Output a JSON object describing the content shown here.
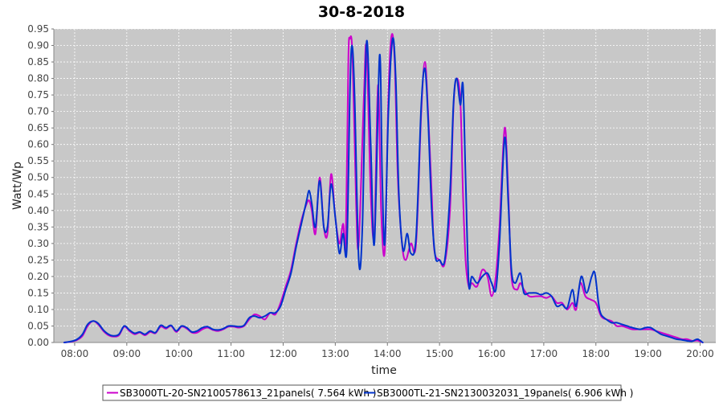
{
  "chart_data": {
    "type": "line",
    "title": "30-8-2018",
    "xlabel": "time",
    "ylabel": "Watt/Wp",
    "x_unit": "hours",
    "xlim": [
      7.6,
      20.3
    ],
    "ylim": [
      0,
      0.95
    ],
    "y_ticks": [
      0,
      0.05,
      0.1,
      0.15,
      0.2,
      0.25,
      0.3,
      0.35,
      0.4,
      0.45,
      0.5,
      0.55,
      0.6,
      0.65,
      0.7,
      0.75,
      0.8,
      0.85,
      0.9,
      0.95
    ],
    "y_tick_labels": [
      "0.00",
      "0.05",
      "0.10",
      "0.15",
      "0.20",
      "0.25",
      "0.30",
      "0.35",
      "0.40",
      "0.45",
      "0.50",
      "0.55",
      "0.60",
      "0.65",
      "0.70",
      "0.75",
      "0.80",
      "0.85",
      "0.90",
      "0.95"
    ],
    "x_ticks": [
      8,
      9,
      10,
      11,
      12,
      13,
      14,
      15,
      16,
      17,
      18,
      19,
      20
    ],
    "x_tick_labels": [
      "08:00",
      "09:00",
      "10:00",
      "11:00",
      "12:00",
      "13:00",
      "14:00",
      "15:00",
      "16:00",
      "17:00",
      "18:00",
      "19:00",
      "20:00"
    ],
    "grid": true,
    "legend_position": "bottom",
    "series": [
      {
        "name": "SB3000TL-20-SN2100578613_21panels( 7.564 kWh )",
        "color": "#cc00cc",
        "points": [
          [
            7.8,
            0.0
          ],
          [
            7.95,
            0.003
          ],
          [
            8.05,
            0.008
          ],
          [
            8.15,
            0.02
          ],
          [
            8.25,
            0.05
          ],
          [
            8.35,
            0.065
          ],
          [
            8.45,
            0.055
          ],
          [
            8.55,
            0.035
          ],
          [
            8.65,
            0.022
          ],
          [
            8.75,
            0.018
          ],
          [
            8.85,
            0.022
          ],
          [
            8.95,
            0.048
          ],
          [
            9.05,
            0.035
          ],
          [
            9.15,
            0.025
          ],
          [
            9.25,
            0.03
          ],
          [
            9.35,
            0.022
          ],
          [
            9.45,
            0.032
          ],
          [
            9.55,
            0.028
          ],
          [
            9.65,
            0.048
          ],
          [
            9.75,
            0.042
          ],
          [
            9.85,
            0.05
          ],
          [
            9.95,
            0.032
          ],
          [
            10.05,
            0.048
          ],
          [
            10.15,
            0.042
          ],
          [
            10.25,
            0.03
          ],
          [
            10.35,
            0.03
          ],
          [
            10.45,
            0.04
          ],
          [
            10.55,
            0.045
          ],
          [
            10.65,
            0.038
          ],
          [
            10.75,
            0.035
          ],
          [
            10.85,
            0.04
          ],
          [
            10.95,
            0.048
          ],
          [
            11.05,
            0.048
          ],
          [
            11.15,
            0.045
          ],
          [
            11.25,
            0.05
          ],
          [
            11.35,
            0.07
          ],
          [
            11.45,
            0.085
          ],
          [
            11.55,
            0.08
          ],
          [
            11.65,
            0.07
          ],
          [
            11.75,
            0.09
          ],
          [
            11.85,
            0.085
          ],
          [
            11.95,
            0.12
          ],
          [
            12.05,
            0.17
          ],
          [
            12.15,
            0.22
          ],
          [
            12.25,
            0.3
          ],
          [
            12.35,
            0.37
          ],
          [
            12.45,
            0.42
          ],
          [
            12.5,
            0.43
          ],
          [
            12.55,
            0.4
          ],
          [
            12.62,
            0.33
          ],
          [
            12.7,
            0.5
          ],
          [
            12.78,
            0.35
          ],
          [
            12.85,
            0.33
          ],
          [
            12.92,
            0.51
          ],
          [
            13.0,
            0.38
          ],
          [
            13.08,
            0.3
          ],
          [
            13.15,
            0.36
          ],
          [
            13.2,
            0.3
          ],
          [
            13.25,
            0.85
          ],
          [
            13.28,
            0.92
          ],
          [
            13.33,
            0.87
          ],
          [
            13.4,
            0.42
          ],
          [
            13.45,
            0.3
          ],
          [
            13.55,
            0.75
          ],
          [
            13.6,
            0.89
          ],
          [
            13.68,
            0.45
          ],
          [
            13.75,
            0.33
          ],
          [
            13.82,
            0.78
          ],
          [
            13.88,
            0.4
          ],
          [
            13.95,
            0.28
          ],
          [
            14.02,
            0.75
          ],
          [
            14.08,
            0.93
          ],
          [
            14.14,
            0.85
          ],
          [
            14.2,
            0.5
          ],
          [
            14.28,
            0.3
          ],
          [
            14.35,
            0.25
          ],
          [
            14.45,
            0.3
          ],
          [
            14.55,
            0.3
          ],
          [
            14.65,
            0.7
          ],
          [
            14.72,
            0.85
          ],
          [
            14.78,
            0.7
          ],
          [
            14.85,
            0.45
          ],
          [
            14.9,
            0.28
          ],
          [
            15.0,
            0.25
          ],
          [
            15.1,
            0.24
          ],
          [
            15.2,
            0.4
          ],
          [
            15.27,
            0.72
          ],
          [
            15.33,
            0.8
          ],
          [
            15.4,
            0.73
          ],
          [
            15.45,
            0.45
          ],
          [
            15.5,
            0.25
          ],
          [
            15.56,
            0.17
          ],
          [
            15.62,
            0.18
          ],
          [
            15.72,
            0.17
          ],
          [
            15.82,
            0.22
          ],
          [
            15.92,
            0.2
          ],
          [
            16.0,
            0.14
          ],
          [
            16.08,
            0.2
          ],
          [
            16.15,
            0.35
          ],
          [
            16.25,
            0.65
          ],
          [
            16.32,
            0.45
          ],
          [
            16.38,
            0.2
          ],
          [
            16.48,
            0.16
          ],
          [
            16.55,
            0.18
          ],
          [
            16.62,
            0.16
          ],
          [
            16.72,
            0.14
          ],
          [
            16.85,
            0.14
          ],
          [
            16.95,
            0.14
          ],
          [
            17.05,
            0.135
          ],
          [
            17.15,
            0.14
          ],
          [
            17.25,
            0.12
          ],
          [
            17.35,
            0.12
          ],
          [
            17.45,
            0.1
          ],
          [
            17.55,
            0.12
          ],
          [
            17.62,
            0.1
          ],
          [
            17.7,
            0.18
          ],
          [
            17.8,
            0.14
          ],
          [
            17.9,
            0.13
          ],
          [
            18.0,
            0.12
          ],
          [
            18.1,
            0.08
          ],
          [
            18.2,
            0.07
          ],
          [
            18.3,
            0.065
          ],
          [
            18.4,
            0.05
          ],
          [
            18.5,
            0.05
          ],
          [
            18.6,
            0.045
          ],
          [
            18.7,
            0.04
          ],
          [
            18.85,
            0.04
          ],
          [
            18.95,
            0.04
          ],
          [
            19.05,
            0.04
          ],
          [
            19.15,
            0.035
          ],
          [
            19.25,
            0.03
          ],
          [
            19.35,
            0.025
          ],
          [
            19.45,
            0.02
          ],
          [
            19.55,
            0.015
          ],
          [
            19.65,
            0.01
          ],
          [
            19.75,
            0.01
          ],
          [
            19.85,
            0.005
          ],
          [
            19.95,
            0.006
          ],
          [
            20.05,
            0.0
          ]
        ]
      },
      {
        "name": "SB3000TL-21-SN2130032031_19panels( 6.906 kWh )",
        "color": "#0033cc",
        "points": [
          [
            7.8,
            0.0
          ],
          [
            7.95,
            0.004
          ],
          [
            8.05,
            0.01
          ],
          [
            8.15,
            0.025
          ],
          [
            8.25,
            0.055
          ],
          [
            8.35,
            0.065
          ],
          [
            8.45,
            0.058
          ],
          [
            8.55,
            0.038
          ],
          [
            8.65,
            0.025
          ],
          [
            8.75,
            0.02
          ],
          [
            8.85,
            0.025
          ],
          [
            8.95,
            0.05
          ],
          [
            9.05,
            0.038
          ],
          [
            9.15,
            0.028
          ],
          [
            9.25,
            0.032
          ],
          [
            9.35,
            0.025
          ],
          [
            9.45,
            0.035
          ],
          [
            9.55,
            0.03
          ],
          [
            9.65,
            0.052
          ],
          [
            9.75,
            0.045
          ],
          [
            9.85,
            0.052
          ],
          [
            9.95,
            0.035
          ],
          [
            10.05,
            0.05
          ],
          [
            10.15,
            0.045
          ],
          [
            10.25,
            0.032
          ],
          [
            10.35,
            0.035
          ],
          [
            10.45,
            0.045
          ],
          [
            10.55,
            0.048
          ],
          [
            10.65,
            0.04
          ],
          [
            10.75,
            0.038
          ],
          [
            10.85,
            0.042
          ],
          [
            10.95,
            0.05
          ],
          [
            11.05,
            0.05
          ],
          [
            11.15,
            0.048
          ],
          [
            11.25,
            0.052
          ],
          [
            11.35,
            0.075
          ],
          [
            11.45,
            0.08
          ],
          [
            11.55,
            0.075
          ],
          [
            11.65,
            0.08
          ],
          [
            11.75,
            0.09
          ],
          [
            11.85,
            0.09
          ],
          [
            11.95,
            0.11
          ],
          [
            12.05,
            0.16
          ],
          [
            12.15,
            0.21
          ],
          [
            12.25,
            0.29
          ],
          [
            12.35,
            0.36
          ],
          [
            12.45,
            0.43
          ],
          [
            12.5,
            0.46
          ],
          [
            12.55,
            0.42
          ],
          [
            12.62,
            0.35
          ],
          [
            12.7,
            0.49
          ],
          [
            12.78,
            0.35
          ],
          [
            12.85,
            0.35
          ],
          [
            12.92,
            0.48
          ],
          [
            13.0,
            0.38
          ],
          [
            13.08,
            0.27
          ],
          [
            13.15,
            0.33
          ],
          [
            13.22,
            0.28
          ],
          [
            13.28,
            0.75
          ],
          [
            13.32,
            0.9
          ],
          [
            13.37,
            0.75
          ],
          [
            13.45,
            0.25
          ],
          [
            13.52,
            0.35
          ],
          [
            13.6,
            0.91
          ],
          [
            13.68,
            0.6
          ],
          [
            13.75,
            0.3
          ],
          [
            13.85,
            0.87
          ],
          [
            13.9,
            0.5
          ],
          [
            13.95,
            0.3
          ],
          [
            14.02,
            0.7
          ],
          [
            14.1,
            0.92
          ],
          [
            14.16,
            0.8
          ],
          [
            14.22,
            0.45
          ],
          [
            14.3,
            0.28
          ],
          [
            14.38,
            0.33
          ],
          [
            14.45,
            0.27
          ],
          [
            14.55,
            0.32
          ],
          [
            14.65,
            0.72
          ],
          [
            14.72,
            0.83
          ],
          [
            14.78,
            0.68
          ],
          [
            14.85,
            0.4
          ],
          [
            14.92,
            0.26
          ],
          [
            15.0,
            0.25
          ],
          [
            15.1,
            0.25
          ],
          [
            15.2,
            0.45
          ],
          [
            15.27,
            0.73
          ],
          [
            15.33,
            0.8
          ],
          [
            15.4,
            0.72
          ],
          [
            15.45,
            0.78
          ],
          [
            15.5,
            0.5
          ],
          [
            15.56,
            0.18
          ],
          [
            15.62,
            0.2
          ],
          [
            15.72,
            0.18
          ],
          [
            15.82,
            0.2
          ],
          [
            15.92,
            0.21
          ],
          [
            16.0,
            0.18
          ],
          [
            16.08,
            0.16
          ],
          [
            16.15,
            0.3
          ],
          [
            16.25,
            0.62
          ],
          [
            16.32,
            0.42
          ],
          [
            16.38,
            0.22
          ],
          [
            16.45,
            0.18
          ],
          [
            16.55,
            0.21
          ],
          [
            16.62,
            0.15
          ],
          [
            16.72,
            0.15
          ],
          [
            16.85,
            0.15
          ],
          [
            16.95,
            0.145
          ],
          [
            17.05,
            0.15
          ],
          [
            17.15,
            0.14
          ],
          [
            17.25,
            0.11
          ],
          [
            17.35,
            0.115
          ],
          [
            17.45,
            0.105
          ],
          [
            17.55,
            0.16
          ],
          [
            17.62,
            0.11
          ],
          [
            17.72,
            0.2
          ],
          [
            17.82,
            0.15
          ],
          [
            17.92,
            0.2
          ],
          [
            17.98,
            0.21
          ],
          [
            18.05,
            0.12
          ],
          [
            18.1,
            0.085
          ],
          [
            18.2,
            0.07
          ],
          [
            18.3,
            0.06
          ],
          [
            18.4,
            0.06
          ],
          [
            18.5,
            0.055
          ],
          [
            18.6,
            0.05
          ],
          [
            18.7,
            0.045
          ],
          [
            18.85,
            0.04
          ],
          [
            18.95,
            0.045
          ],
          [
            19.05,
            0.045
          ],
          [
            19.15,
            0.035
          ],
          [
            19.25,
            0.025
          ],
          [
            19.35,
            0.02
          ],
          [
            19.45,
            0.015
          ],
          [
            19.55,
            0.01
          ],
          [
            19.65,
            0.008
          ],
          [
            19.75,
            0.005
          ],
          [
            19.85,
            0.004
          ],
          [
            19.95,
            0.01
          ],
          [
            20.05,
            0.0
          ]
        ]
      }
    ]
  }
}
